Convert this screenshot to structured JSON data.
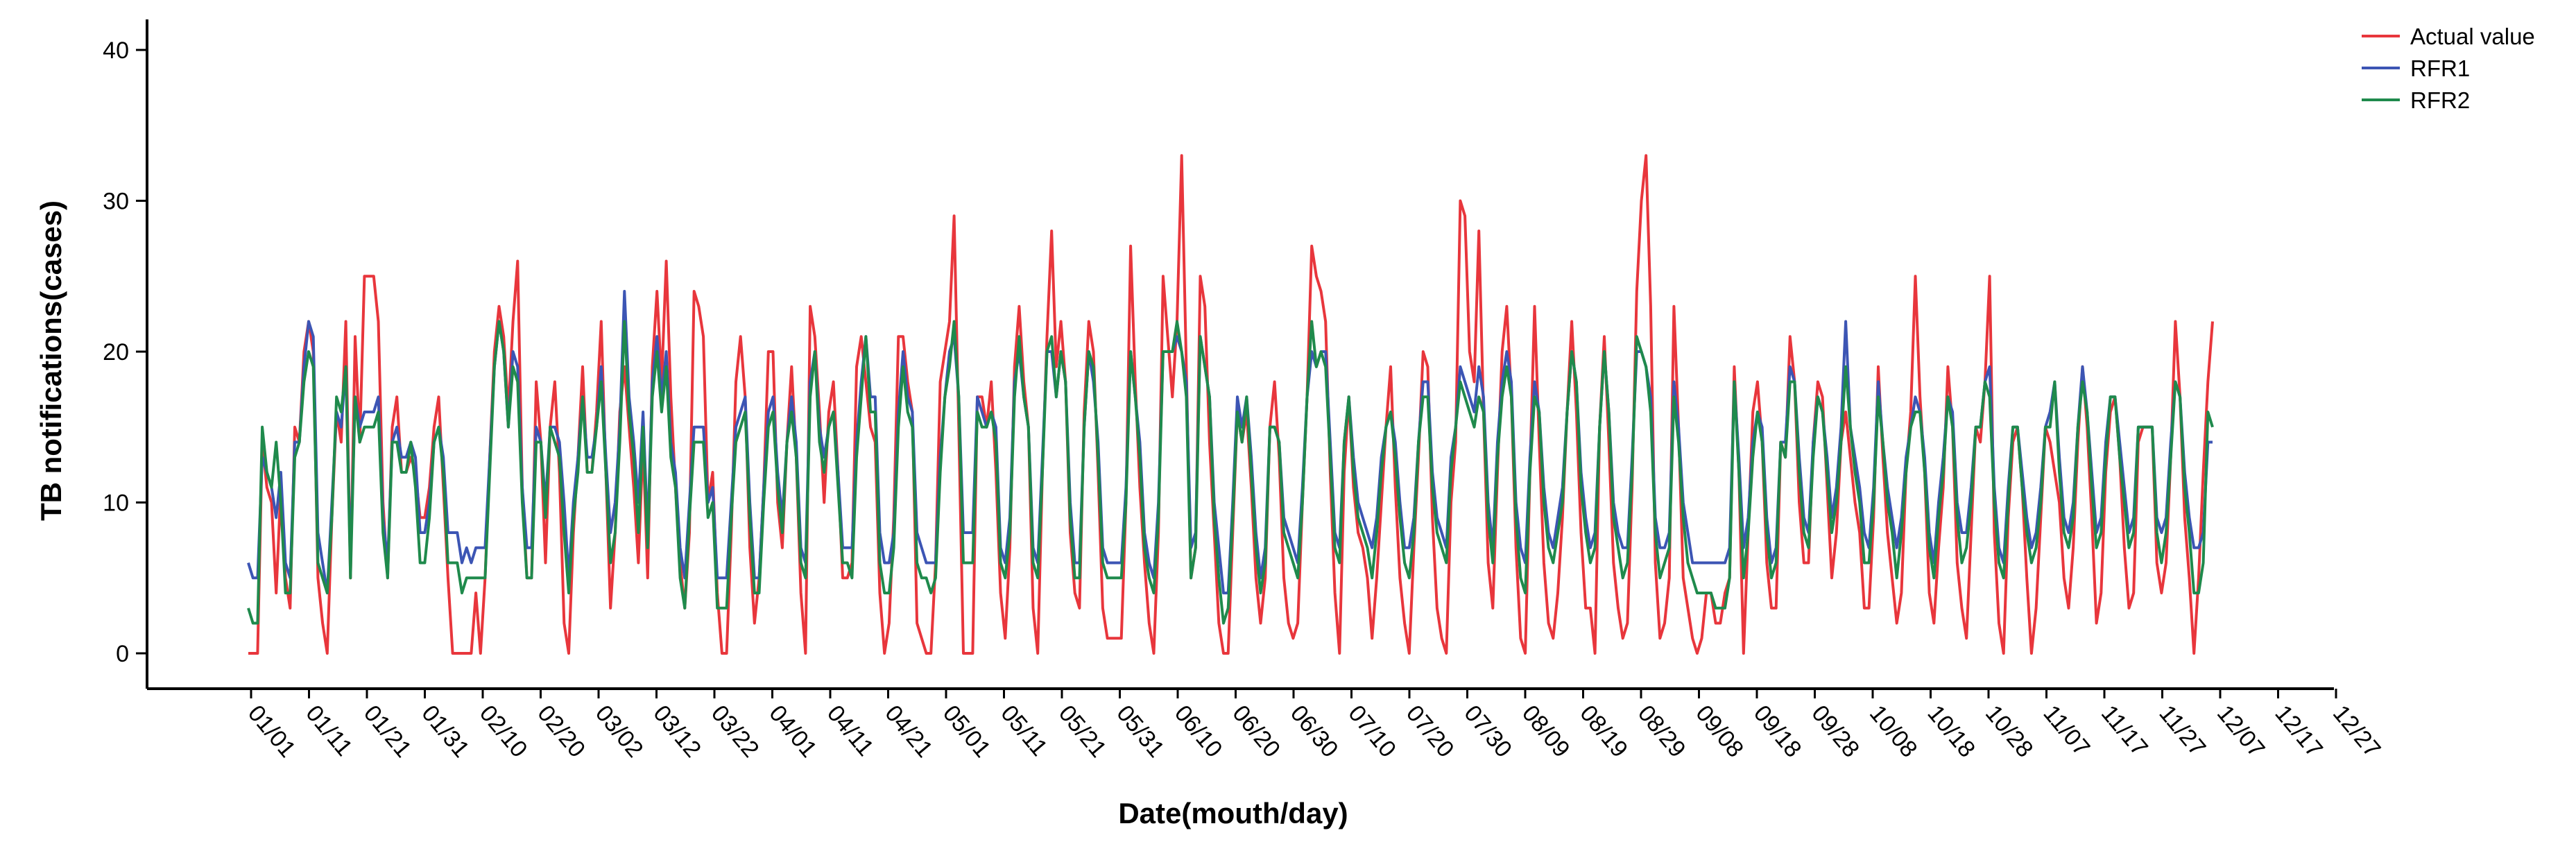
{
  "chart_data": {
    "type": "line",
    "xlabel": "Date(mouth/day)",
    "ylabel": "TB notifications(cases)",
    "ylim": [
      0,
      40
    ],
    "yticks": [
      0,
      10,
      20,
      30,
      40
    ],
    "grid": false,
    "legend_position": "top-right",
    "x_tick_labels": [
      "01/01",
      "01/11",
      "01/21",
      "01/31",
      "02/10",
      "02/20",
      "03/02",
      "03/12",
      "03/22",
      "04/01",
      "04/11",
      "04/21",
      "05/01",
      "05/11",
      "05/21",
      "05/31",
      "06/10",
      "06/20",
      "06/30",
      "07/10",
      "07/20",
      "07/30",
      "08/09",
      "08/19",
      "08/29",
      "09/08",
      "09/18",
      "09/28",
      "10/08",
      "10/18",
      "10/28",
      "11/07",
      "11/17",
      "11/27",
      "12/07",
      "12/17",
      "12/27"
    ],
    "series": [
      {
        "name": "Actual value",
        "color": "#e8363c",
        "values": [
          0,
          0,
          0,
          14,
          11,
          10,
          4,
          11,
          5,
          3,
          15,
          14,
          20,
          22,
          20,
          5,
          2,
          0,
          9,
          16,
          14,
          22,
          5,
          21,
          14,
          25,
          25,
          25,
          22,
          10,
          5,
          15,
          17,
          12,
          12,
          13,
          12,
          9,
          9,
          11,
          15,
          17,
          11,
          5,
          0,
          0,
          0,
          0,
          0,
          4,
          0,
          5,
          13,
          20,
          23,
          21,
          16,
          22,
          26,
          11,
          5,
          5,
          18,
          14,
          6,
          15,
          18,
          12,
          2,
          0,
          8,
          13,
          19,
          12,
          12,
          16,
          22,
          12,
          3,
          8,
          16,
          19,
          15,
          11,
          6,
          14,
          5,
          19,
          24,
          18,
          26,
          17,
          11,
          6,
          3,
          8,
          24,
          23,
          21,
          10,
          12,
          4,
          0,
          0,
          8,
          18,
          21,
          17,
          7,
          2,
          5,
          11,
          20,
          20,
          10,
          7,
          14,
          19,
          13,
          4,
          0,
          23,
          21,
          16,
          10,
          16,
          18,
          12,
          5,
          5,
          6,
          19,
          21,
          18,
          15,
          14,
          4,
          0,
          2,
          9,
          21,
          21,
          18,
          16,
          2,
          1,
          0,
          0,
          6,
          18,
          20,
          22,
          29,
          15,
          0,
          0,
          0,
          17,
          17,
          15,
          18,
          12,
          4,
          1,
          7,
          19,
          23,
          18,
          15,
          3,
          0,
          12,
          21,
          28,
          19,
          22,
          18,
          8,
          4,
          3,
          16,
          22,
          20,
          12,
          3,
          1,
          1,
          1,
          1,
          10,
          27,
          18,
          11,
          6,
          2,
          0,
          8,
          25,
          21,
          17,
          22,
          33,
          19,
          5,
          7,
          25,
          23,
          14,
          8,
          2,
          0,
          0,
          8,
          16,
          14,
          16,
          11,
          5,
          2,
          5,
          15,
          18,
          13,
          5,
          2,
          1,
          2,
          10,
          17,
          27,
          25,
          24,
          22,
          12,
          4,
          0,
          12,
          17,
          11,
          8,
          7,
          5,
          1,
          5,
          10,
          15,
          19,
          11,
          5,
          2,
          0,
          7,
          13,
          20,
          19,
          9,
          3,
          1,
          0,
          10,
          14,
          30,
          29,
          20,
          18,
          28,
          16,
          6,
          3,
          12,
          20,
          23,
          17,
          7,
          1,
          0,
          12,
          23,
          14,
          6,
          2,
          1,
          4,
          9,
          16,
          22,
          16,
          8,
          3,
          3,
          0,
          15,
          21,
          14,
          6,
          3,
          1,
          2,
          11,
          24,
          30,
          33,
          23,
          6,
          1,
          2,
          5,
          23,
          15,
          5,
          3,
          1,
          0,
          1,
          4,
          4,
          2,
          2,
          4,
          5,
          19,
          12,
          0,
          8,
          16,
          18,
          14,
          6,
          3,
          3,
          14,
          13,
          21,
          18,
          10,
          6,
          6,
          14,
          18,
          17,
          11,
          5,
          8,
          14,
          16,
          13,
          10,
          8,
          3,
          3,
          9,
          19,
          13,
          8,
          5,
          2,
          4,
          12,
          16,
          25,
          17,
          12,
          4,
          2,
          7,
          11,
          19,
          15,
          6,
          3,
          1,
          8,
          15,
          14,
          18,
          25,
          8,
          2,
          0,
          9,
          14,
          15,
          11,
          5,
          0,
          3,
          9,
          15,
          14,
          12,
          10,
          5,
          3,
          7,
          14,
          19,
          15,
          9,
          2,
          4,
          12,
          16,
          17,
          13,
          7,
          3,
          4,
          14,
          15,
          15,
          15,
          6,
          4,
          6,
          13,
          22,
          17,
          9,
          5,
          0,
          5,
          12,
          18,
          22
        ]
      },
      {
        "name": "RFR1",
        "color": "#3c55b4",
        "values": [
          6,
          5,
          5,
          13,
          12,
          11,
          9,
          12,
          6,
          5,
          14,
          14,
          19,
          22,
          21,
          8,
          6,
          4,
          10,
          16,
          15,
          19,
          6,
          17,
          15,
          16,
          16,
          16,
          17,
          9,
          6,
          14,
          15,
          13,
          13,
          14,
          13,
          8,
          8,
          10,
          14,
          15,
          13,
          8,
          8,
          8,
          6,
          7,
          6,
          7,
          7,
          7,
          13,
          19,
          22,
          20,
          15,
          20,
          19,
          11,
          7,
          7,
          15,
          14,
          10,
          15,
          15,
          14,
          10,
          5,
          10,
          13,
          17,
          13,
          13,
          15,
          19,
          13,
          8,
          10,
          15,
          24,
          17,
          14,
          10,
          16,
          8,
          18,
          21,
          17,
          20,
          14,
          12,
          7,
          5,
          10,
          15,
          15,
          15,
          10,
          11,
          5,
          5,
          5,
          10,
          15,
          16,
          17,
          10,
          5,
          5,
          11,
          16,
          17,
          12,
          9,
          14,
          17,
          14,
          7,
          6,
          18,
          20,
          15,
          13,
          15,
          16,
          12,
          7,
          7,
          7,
          14,
          18,
          21,
          17,
          17,
          8,
          6,
          6,
          8,
          16,
          20,
          17,
          16,
          8,
          7,
          6,
          6,
          6,
          13,
          17,
          20,
          21,
          17,
          8,
          8,
          8,
          17,
          16,
          15,
          16,
          15,
          7,
          6,
          9,
          18,
          20,
          17,
          15,
          7,
          6,
          13,
          20,
          20,
          17,
          20,
          18,
          10,
          6,
          6,
          15,
          20,
          18,
          14,
          7,
          6,
          6,
          6,
          6,
          11,
          20,
          17,
          14,
          8,
          6,
          5,
          10,
          20,
          20,
          20,
          21,
          20,
          18,
          7,
          8,
          21,
          19,
          17,
          10,
          7,
          4,
          4,
          10,
          17,
          15,
          17,
          13,
          8,
          5,
          7,
          15,
          15,
          14,
          9,
          8,
          7,
          6,
          11,
          17,
          20,
          19,
          20,
          20,
          14,
          8,
          7,
          14,
          17,
          13,
          10,
          9,
          8,
          7,
          9,
          13,
          15,
          16,
          14,
          10,
          7,
          7,
          9,
          14,
          18,
          18,
          12,
          9,
          8,
          7,
          13,
          15,
          19,
          18,
          17,
          16,
          19,
          17,
          10,
          7,
          14,
          18,
          20,
          18,
          10,
          7,
          6,
          13,
          18,
          16,
          11,
          8,
          7,
          9,
          11,
          16,
          20,
          18,
          12,
          9,
          7,
          8,
          15,
          20,
          16,
          10,
          8,
          7,
          7,
          13,
          20,
          20,
          19,
          17,
          9,
          7,
          7,
          8,
          18,
          15,
          10,
          8,
          6,
          6,
          6,
          6,
          6,
          6,
          6,
          6,
          7,
          18,
          13,
          7,
          9,
          14,
          16,
          15,
          9,
          6,
          7,
          14,
          14,
          19,
          18,
          13,
          9,
          8,
          14,
          17,
          16,
          13,
          9,
          11,
          15,
          22,
          15,
          13,
          11,
          8,
          7,
          11,
          18,
          14,
          11,
          9,
          7,
          9,
          13,
          15,
          17,
          16,
          13,
          8,
          6,
          10,
          13,
          17,
          16,
          10,
          8,
          8,
          11,
          15,
          15,
          18,
          19,
          11,
          7,
          6,
          11,
          15,
          15,
          12,
          9,
          7,
          8,
          11,
          15,
          16,
          18,
          13,
          9,
          8,
          10,
          15,
          19,
          16,
          12,
          8,
          9,
          14,
          17,
          17,
          14,
          11,
          8,
          9,
          15,
          15,
          15,
          15,
          9,
          8,
          9,
          14,
          18,
          17,
          12,
          9,
          7,
          7,
          8,
          14,
          14
        ]
      },
      {
        "name": "RFR2",
        "color": "#1f8a4c",
        "values": [
          3,
          2,
          2,
          15,
          12,
          11,
          14,
          10,
          4,
          4,
          13,
          14,
          18,
          20,
          19,
          6,
          5,
          4,
          9,
          17,
          16,
          19,
          5,
          17,
          14,
          15,
          15,
          15,
          16,
          8,
          5,
          14,
          14,
          12,
          12,
          14,
          11,
          6,
          6,
          9,
          14,
          15,
          12,
          6,
          6,
          6,
          4,
          5,
          5,
          5,
          5,
          5,
          12,
          19,
          22,
          20,
          15,
          19,
          18,
          10,
          5,
          5,
          14,
          14,
          9,
          15,
          14,
          13,
          8,
          4,
          9,
          12,
          17,
          12,
          12,
          15,
          18,
          12,
          6,
          8,
          14,
          22,
          16,
          13,
          8,
          15,
          7,
          17,
          20,
          16,
          19,
          13,
          11,
          5,
          3,
          9,
          14,
          14,
          14,
          9,
          10,
          3,
          3,
          3,
          9,
          14,
          15,
          16,
          9,
          4,
          4,
          10,
          15,
          16,
          11,
          8,
          14,
          16,
          13,
          6,
          5,
          17,
          20,
          14,
          12,
          15,
          16,
          11,
          6,
          6,
          5,
          13,
          17,
          21,
          16,
          16,
          6,
          4,
          4,
          7,
          15,
          19,
          16,
          15,
          6,
          5,
          5,
          4,
          5,
          12,
          17,
          19,
          22,
          17,
          6,
          6,
          6,
          16,
          15,
          15,
          16,
          14,
          6,
          5,
          8,
          17,
          21,
          17,
          15,
          6,
          5,
          12,
          20,
          21,
          17,
          20,
          18,
          9,
          5,
          5,
          15,
          20,
          19,
          13,
          6,
          5,
          5,
          5,
          5,
          10,
          20,
          17,
          13,
          7,
          5,
          4,
          9,
          20,
          20,
          20,
          22,
          20,
          17,
          5,
          7,
          21,
          19,
          17,
          9,
          5,
          2,
          3,
          9,
          16,
          14,
          17,
          12,
          7,
          4,
          6,
          15,
          15,
          14,
          8,
          7,
          6,
          5,
          10,
          17,
          22,
          19,
          20,
          19,
          13,
          7,
          6,
          14,
          17,
          12,
          9,
          8,
          7,
          5,
          8,
          12,
          15,
          16,
          13,
          9,
          6,
          5,
          8,
          14,
          17,
          17,
          11,
          8,
          7,
          6,
          12,
          15,
          18,
          17,
          16,
          15,
          17,
          16,
          9,
          6,
          13,
          17,
          19,
          17,
          9,
          5,
          4,
          12,
          17,
          16,
          10,
          7,
          6,
          8,
          10,
          16,
          20,
          18,
          11,
          8,
          6,
          7,
          15,
          20,
          16,
          9,
          7,
          5,
          6,
          12,
          21,
          20,
          19,
          16,
          8,
          5,
          6,
          7,
          17,
          14,
          9,
          6,
          5,
          4,
          4,
          4,
          4,
          3,
          3,
          3,
          5,
          18,
          12,
          5,
          8,
          13,
          16,
          14,
          8,
          5,
          6,
          14,
          13,
          18,
          18,
          12,
          8,
          7,
          13,
          17,
          16,
          12,
          8,
          10,
          14,
          19,
          15,
          12,
          10,
          6,
          6,
          10,
          17,
          14,
          10,
          8,
          5,
          8,
          12,
          15,
          16,
          16,
          12,
          7,
          5,
          9,
          12,
          17,
          15,
          9,
          6,
          7,
          10,
          15,
          15,
          18,
          17,
          10,
          6,
          5,
          10,
          15,
          15,
          11,
          8,
          6,
          7,
          10,
          15,
          15,
          18,
          12,
          8,
          7,
          9,
          15,
          18,
          16,
          11,
          7,
          8,
          13,
          17,
          17,
          13,
          10,
          7,
          8,
          15,
          15,
          15,
          15,
          8,
          6,
          8,
          13,
          18,
          17,
          11,
          8,
          4,
          4,
          6,
          16,
          15
        ]
      }
    ]
  }
}
